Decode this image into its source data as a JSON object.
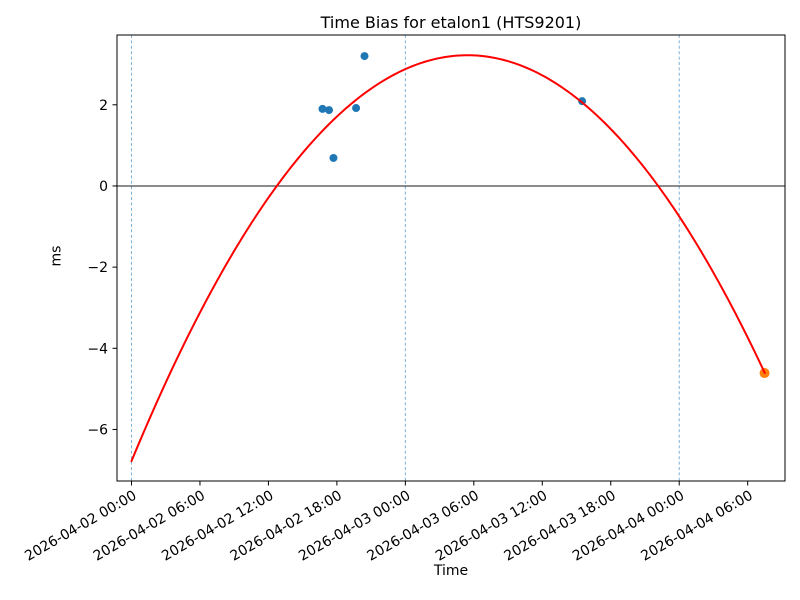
{
  "chart_data": {
    "type": "scatter",
    "title": "Time Bias for etalon1 (HTS9201)",
    "xlabel": "Time",
    "ylabel": "ms",
    "x_origin": "2026-04-02 00:00",
    "x_tick_hours": [
      0,
      6,
      12,
      18,
      24,
      30,
      36,
      42,
      48,
      54
    ],
    "x_tick_labels": [
      "2026-04-02 00:00",
      "2026-04-02 06:00",
      "2026-04-02 12:00",
      "2026-04-02 18:00",
      "2026-04-03 00:00",
      "2026-04-03 06:00",
      "2026-04-03 12:00",
      "2026-04-03 18:00",
      "2026-04-04 00:00",
      "2026-04-04 06:00"
    ],
    "y_ticks": [
      2,
      0,
      -2,
      -4,
      -6
    ],
    "xlim_hours": [
      -1.27,
      57.27
    ],
    "ylim": [
      -7.27,
      3.72
    ],
    "x_tick_rotation_deg": 30,
    "grid": false,
    "legend": "none",
    "day_gridlines_hours": [
      0,
      24,
      48
    ],
    "gridline_color": "#7eb0d5",
    "zero_line_y": 0,
    "zero_line_color": "#1a1a1a",
    "series": [
      {
        "name": "measured-bias-points",
        "type": "scatter",
        "color": "#1f77b4",
        "marker_radius": 4,
        "points": [
          {
            "time": "2026-04-02 16:45",
            "t_hours": 16.74,
            "y": 1.9
          },
          {
            "time": "2026-04-02 17:20",
            "t_hours": 17.31,
            "y": 1.87
          },
          {
            "time": "2026-04-02 17:40",
            "t_hours": 17.7,
            "y": 0.69
          },
          {
            "time": "2026-04-02 19:40",
            "t_hours": 19.68,
            "y": 1.92
          },
          {
            "time": "2026-04-02 20:25",
            "t_hours": 20.42,
            "y": 3.2
          },
          {
            "time": "2026-04-03 15:30",
            "t_hours": 39.49,
            "y": 2.09
          }
        ]
      },
      {
        "name": "extrapolated-bias-point",
        "type": "scatter",
        "color": "#ff7f0e",
        "marker_radius": 5,
        "points": [
          {
            "time": "2026-04-04 07:30",
            "t_hours": 55.48,
            "y": -4.61
          }
        ]
      },
      {
        "name": "quadratic-fit-curve",
        "type": "line",
        "color": "#ff0000",
        "line_width": 2,
        "fit": {
          "kind": "quadratic",
          "a": -0.011535,
          "b": 0.6793,
          "c": -6.78
        },
        "t_range_hours": [
          0,
          55.5
        ],
        "peak": {
          "time": "2026-04-03 05:30",
          "t_hours": 29.45,
          "y": 3.22
        },
        "value_at_start": -6.78,
        "value_at_end": -4.61
      }
    ]
  }
}
